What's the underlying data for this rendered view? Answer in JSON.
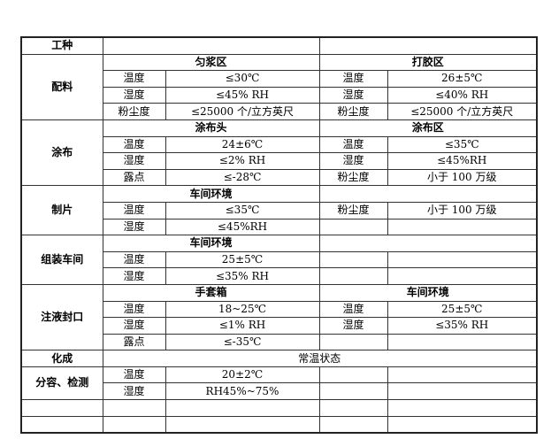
{
  "rows": [
    [
      {
        "t": "工种",
        "b": 1
      },
      {
        "t": "",
        "cs": 2
      },
      {
        "t": "",
        "cs": 2
      }
    ],
    [
      {
        "t": "配料",
        "b": 1,
        "rs": 4
      },
      {
        "t": "匀浆区",
        "b": 1,
        "cs": 2
      },
      {
        "t": "打胶区",
        "b": 1,
        "cs": 2
      }
    ],
    [
      {
        "t": "温度"
      },
      {
        "t": "≤30℃"
      },
      {
        "t": "温度"
      },
      {
        "t": "26±5℃"
      }
    ],
    [
      {
        "t": "湿度"
      },
      {
        "t": "≤45% RH"
      },
      {
        "t": "湿度"
      },
      {
        "t": "≤40% RH"
      }
    ],
    [
      {
        "t": "粉尘度"
      },
      {
        "t": "≤25000 个/立方英尺"
      },
      {
        "t": "粉尘度"
      },
      {
        "t": "≤25000 个/立方英尺"
      }
    ],
    [
      {
        "t": "涂布",
        "b": 1,
        "rs": 4
      },
      {
        "t": "涂布头",
        "b": 1,
        "cs": 2
      },
      {
        "t": "涂布区",
        "b": 1,
        "cs": 2
      }
    ],
    [
      {
        "t": "温度"
      },
      {
        "t": "24±6℃"
      },
      {
        "t": "温度"
      },
      {
        "t": "≤35℃"
      }
    ],
    [
      {
        "t": "湿度"
      },
      {
        "t": "≤2% RH"
      },
      {
        "t": "湿度"
      },
      {
        "t": "≤45%RH"
      }
    ],
    [
      {
        "t": "露点"
      },
      {
        "t": "≤-28℃"
      },
      {
        "t": "粉尘度"
      },
      {
        "t": "小于 100 万级"
      }
    ],
    [
      {
        "t": "制片",
        "b": 1,
        "rs": 3
      },
      {
        "t": "车间环境",
        "b": 1,
        "cs": 2
      },
      {
        "t": "",
        "cs": 2
      }
    ],
    [
      {
        "t": "温度"
      },
      {
        "t": "≤35℃"
      },
      {
        "t": "粉尘度"
      },
      {
        "t": "小于 100 万级"
      }
    ],
    [
      {
        "t": "湿度"
      },
      {
        "t": "≤45%RH"
      },
      {
        "t": ""
      },
      {
        "t": ""
      }
    ],
    [
      {
        "t": "组装车间",
        "b": 1,
        "rs": 3
      },
      {
        "t": "车间环境",
        "b": 1,
        "cs": 2
      },
      {
        "t": "",
        "cs": 2
      }
    ],
    [
      {
        "t": "温度"
      },
      {
        "t": "25±5℃"
      },
      {
        "t": ""
      },
      {
        "t": ""
      }
    ],
    [
      {
        "t": "湿度"
      },
      {
        "t": "≤35% RH"
      },
      {
        "t": ""
      },
      {
        "t": ""
      }
    ],
    [
      {
        "t": "注液封口",
        "b": 1,
        "rs": 4
      },
      {
        "t": "手套箱",
        "b": 1,
        "cs": 2
      },
      {
        "t": "车间环境",
        "b": 1,
        "cs": 2
      }
    ],
    [
      {
        "t": "温度"
      },
      {
        "t": "18~25℃"
      },
      {
        "t": "温度"
      },
      {
        "t": "25±5℃"
      }
    ],
    [
      {
        "t": "湿度"
      },
      {
        "t": "≤1% RH"
      },
      {
        "t": "湿度"
      },
      {
        "t": "≤35% RH"
      }
    ],
    [
      {
        "t": "露点"
      },
      {
        "t": "≤-35℃"
      },
      {
        "t": ""
      },
      {
        "t": ""
      }
    ],
    [
      {
        "t": "化成",
        "b": 1
      },
      {
        "t": "常温状态",
        "cs": 4
      }
    ],
    [
      {
        "t": "分容、检测",
        "b": 1,
        "rs": 2
      },
      {
        "t": "温度"
      },
      {
        "t": "20±2℃"
      },
      {
        "t": ""
      },
      {
        "t": ""
      }
    ],
    [
      {
        "t": "湿度"
      },
      {
        "t": "RH45%~75%"
      },
      {
        "t": ""
      },
      {
        "t": ""
      }
    ],
    [
      {
        "t": ""
      },
      {
        "t": ""
      },
      {
        "t": ""
      },
      {
        "t": ""
      },
      {
        "t": ""
      }
    ],
    [
      {
        "t": ""
      },
      {
        "t": ""
      },
      {
        "t": ""
      },
      {
        "t": ""
      },
      {
        "t": ""
      }
    ]
  ]
}
